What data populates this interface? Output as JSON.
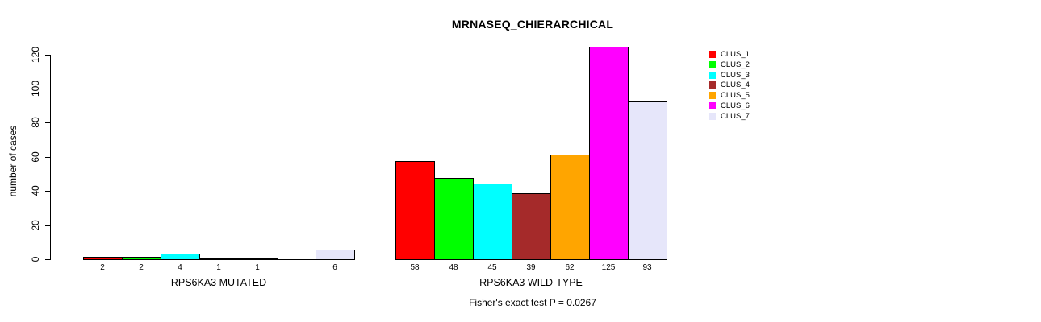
{
  "title": "MRNASEQ_CHIERARCHICAL",
  "chart_data": {
    "type": "bar",
    "title": "MRNASEQ_CHIERARCHICAL",
    "ylabel": "number of cases",
    "xlabel": "",
    "ylim": [
      0,
      130
    ],
    "yticks": [
      0,
      20,
      40,
      60,
      80,
      100,
      120
    ],
    "grid": false,
    "legend_position": "right",
    "legend": [
      "CLUS_1",
      "CLUS_2",
      "CLUS_3",
      "CLUS_4",
      "CLUS_5",
      "CLUS_6",
      "CLUS_7"
    ],
    "series_colors": [
      "#FF0000",
      "#00FF00",
      "#00FFFF",
      "#A52A2A",
      "#FFA500",
      "#FF00FF",
      "#E6E6FA"
    ],
    "groups": [
      {
        "label": "RPS6KA3 MUTATED",
        "values": [
          2,
          2,
          4,
          1,
          1,
          0,
          6
        ],
        "bar_labels": [
          "2",
          "2",
          "4",
          "1",
          "1",
          "",
          "6"
        ]
      },
      {
        "label": "RPS6KA3 WILD-TYPE",
        "values": [
          58,
          48,
          45,
          39,
          62,
          125,
          93
        ],
        "bar_labels": [
          "58",
          "48",
          "45",
          "39",
          "62",
          "125",
          "93"
        ]
      }
    ],
    "annotation": "Fisher's exact test P = 0.0267"
  }
}
